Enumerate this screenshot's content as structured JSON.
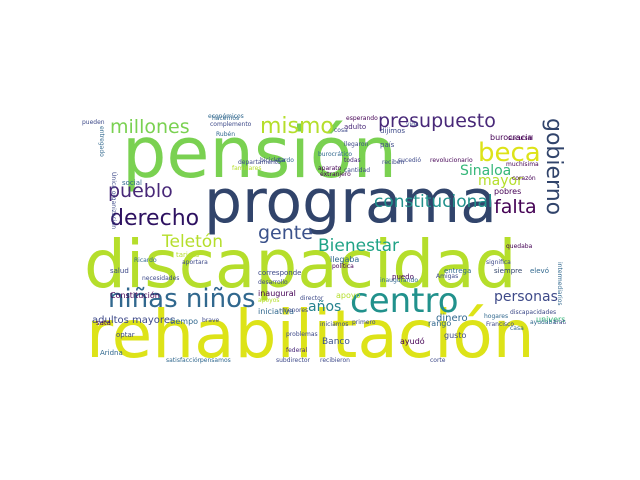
{
  "words": [
    {
      "text": "pensión",
      "color": "#7ad151"
    },
    {
      "text": "programa",
      "color": "#31446b"
    },
    {
      "text": "discapacidad",
      "color": "#b5de2b"
    },
    {
      "text": "rehabilitación",
      "color": "#dde318"
    },
    {
      "text": "centro",
      "color": "#21918c"
    },
    {
      "text": "niñas niños",
      "color": "#31688e"
    },
    {
      "text": "derecho",
      "color": "#2d1160"
    },
    {
      "text": "presupuesto",
      "color": "#482878"
    },
    {
      "text": "millones",
      "color": "#7ad151"
    },
    {
      "text": "mismo",
      "color": "#b5de2b"
    },
    {
      "text": "beca",
      "color": "#dde318"
    },
    {
      "text": "gobierno",
      "color": "#31446b"
    },
    {
      "text": "constitucional",
      "color": "#21918c"
    },
    {
      "text": "Bienestar",
      "color": "#20a386"
    },
    {
      "text": "gente",
      "color": "#3b528b"
    },
    {
      "text": "pueblo",
      "color": "#482878"
    },
    {
      "text": "falta",
      "color": "#440154"
    },
    {
      "text": "Sinaloa",
      "color": "#35b779"
    },
    {
      "text": "mayor",
      "color": "#b5de2b"
    },
    {
      "text": "Teletón",
      "color": "#b5de2b"
    },
    {
      "text": "personas",
      "color": "#3e4a89"
    },
    {
      "text": "años",
      "color": "#26828e"
    },
    {
      "text": "adultos mayores",
      "color": "#3e4a89"
    },
    {
      "text": "burocracia",
      "color": "#440154"
    },
    {
      "text": "Banco",
      "color": "#3b528b"
    },
    {
      "text": "universal",
      "color": "#35b779"
    },
    {
      "text": "dinero",
      "color": "#31688e"
    },
    {
      "text": "ayudó",
      "color": "#440154"
    },
    {
      "text": "iniciativa",
      "color": "#31688e"
    },
    {
      "text": "inaugural",
      "color": "#440154"
    },
    {
      "text": "apoyo",
      "color": "#b5de2b"
    },
    {
      "text": "tiempo",
      "color": "#31688e"
    },
    {
      "text": "Constitución",
      "color": "#440154"
    },
    {
      "text": "entrega",
      "color": "#31688e"
    },
    {
      "text": "siempre",
      "color": "#31446b"
    },
    {
      "text": "elevó",
      "color": "#31688e"
    },
    {
      "text": "rango",
      "color": "#31688e"
    },
    {
      "text": "gusto",
      "color": "#3e4a89"
    },
    {
      "text": "hacemos",
      "color": "#31688e"
    },
    {
      "text": "corresponde",
      "color": "#3e4a89"
    },
    {
      "text": "todas",
      "color": "#482878"
    },
    {
      "text": "llegaba",
      "color": "#31688e"
    },
    {
      "text": "pobres",
      "color": "#440154"
    },
    {
      "text": "social",
      "color": "#31688e"
    },
    {
      "text": "tarjeta",
      "color": "#b5de2b"
    },
    {
      "text": "corazón",
      "color": "#440154"
    },
    {
      "text": "Única organización",
      "color": "#3e4a89"
    },
    {
      "text": "entregado",
      "color": "#31688e"
    },
    {
      "text": "intermediarios",
      "color": "#31688e"
    },
    {
      "text": "director",
      "color": "#3e4a89"
    },
    {
      "text": "federal",
      "color": "#482878"
    },
    {
      "text": "puedo",
      "color": "#440154"
    },
    {
      "text": "salud",
      "color": "#3e4a89"
    },
    {
      "text": "optar",
      "color": "#3e4a89"
    },
    {
      "text": "Aridna",
      "color": "#31688e"
    },
    {
      "text": "dijimos",
      "color": "#3e4a89"
    },
    {
      "text": "país",
      "color": "#3e4a89"
    },
    {
      "text": "cosa",
      "color": "#3e4a89"
    },
    {
      "text": "adulto",
      "color": "#482878"
    },
    {
      "text": "burocrático",
      "color": "#31688e"
    },
    {
      "text": "aparato",
      "color": "#440154"
    },
    {
      "text": "satisfacción",
      "color": "#31688e"
    },
    {
      "text": "problemas",
      "color": "#3e4a89"
    },
    {
      "text": "inaugurando",
      "color": "#31688e"
    },
    {
      "text": "política",
      "color": "#440154"
    },
    {
      "text": "Amigas",
      "color": "#3e4a89"
    },
    {
      "text": "necesidades",
      "color": "#3e4a89"
    },
    {
      "text": "Ricardo",
      "color": "#31688e"
    },
    {
      "text": "esperando",
      "color": "#440154"
    },
    {
      "text": "complemento",
      "color": "#3e4a89"
    },
    {
      "text": "económicos",
      "color": "#31688e"
    },
    {
      "text": "familiares",
      "color": "#b5de2b"
    },
    {
      "text": "departamento",
      "color": "#3e4a89"
    },
    {
      "text": "sucursal",
      "color": "#440154"
    },
    {
      "text": "quedaba",
      "color": "#440154"
    },
    {
      "text": "significa",
      "color": "#3e4a89"
    },
    {
      "text": "ayudaba",
      "color": "#31688e"
    },
    {
      "text": "trata",
      "color": "#3e4a89"
    },
    {
      "text": "discapacidades",
      "color": "#3e4a89"
    },
    {
      "text": "Francisco",
      "color": "#3e4a89"
    },
    {
      "text": "casa",
      "color": "#31688e"
    },
    {
      "text": "sata",
      "color": "#440154"
    },
    {
      "text": "pueden",
      "color": "#3e4a89"
    },
    {
      "text": "vida",
      "color": "#3e4a89"
    },
    {
      "text": "extranjero",
      "color": "#440154"
    },
    {
      "text": "reciben",
      "color": "#3e4a89"
    },
    {
      "text": "apoyos",
      "color": "#b5de2b"
    },
    {
      "text": "cantidad",
      "color": "#3e4a89"
    },
    {
      "text": "Rubén",
      "color": "#31688e"
    },
    {
      "text": "tardo",
      "color": "#31688e"
    },
    {
      "text": "sucedió",
      "color": "#3e4a89"
    },
    {
      "text": "revolucionario",
      "color": "#440154"
    },
    {
      "text": "hogares",
      "color": "#31688e"
    },
    {
      "text": "aportara",
      "color": "#3e4a89"
    },
    {
      "text": "desarrollo",
      "color": "#3e4a89"
    },
    {
      "text": "bicicleta",
      "color": "#3e4a89"
    },
    {
      "text": "brave",
      "color": "#3e4a89"
    },
    {
      "text": "corte",
      "color": "#3e4a89"
    },
    {
      "text": "subdirector",
      "color": "#3e4a89"
    },
    {
      "text": "recibieron",
      "color": "#3e4a89"
    },
    {
      "text": "menores",
      "color": "#3e4a89"
    },
    {
      "text": "primero",
      "color": "#3e4a89"
    },
    {
      "text": "pensamos",
      "color": "#31688e"
    },
    {
      "text": "muchísima",
      "color": "#440154"
    },
    {
      "text": "iniciamos",
      "color": "#3e4a89"
    },
    {
      "text": "llegaron",
      "color": "#3e4a89"
    }
  ]
}
